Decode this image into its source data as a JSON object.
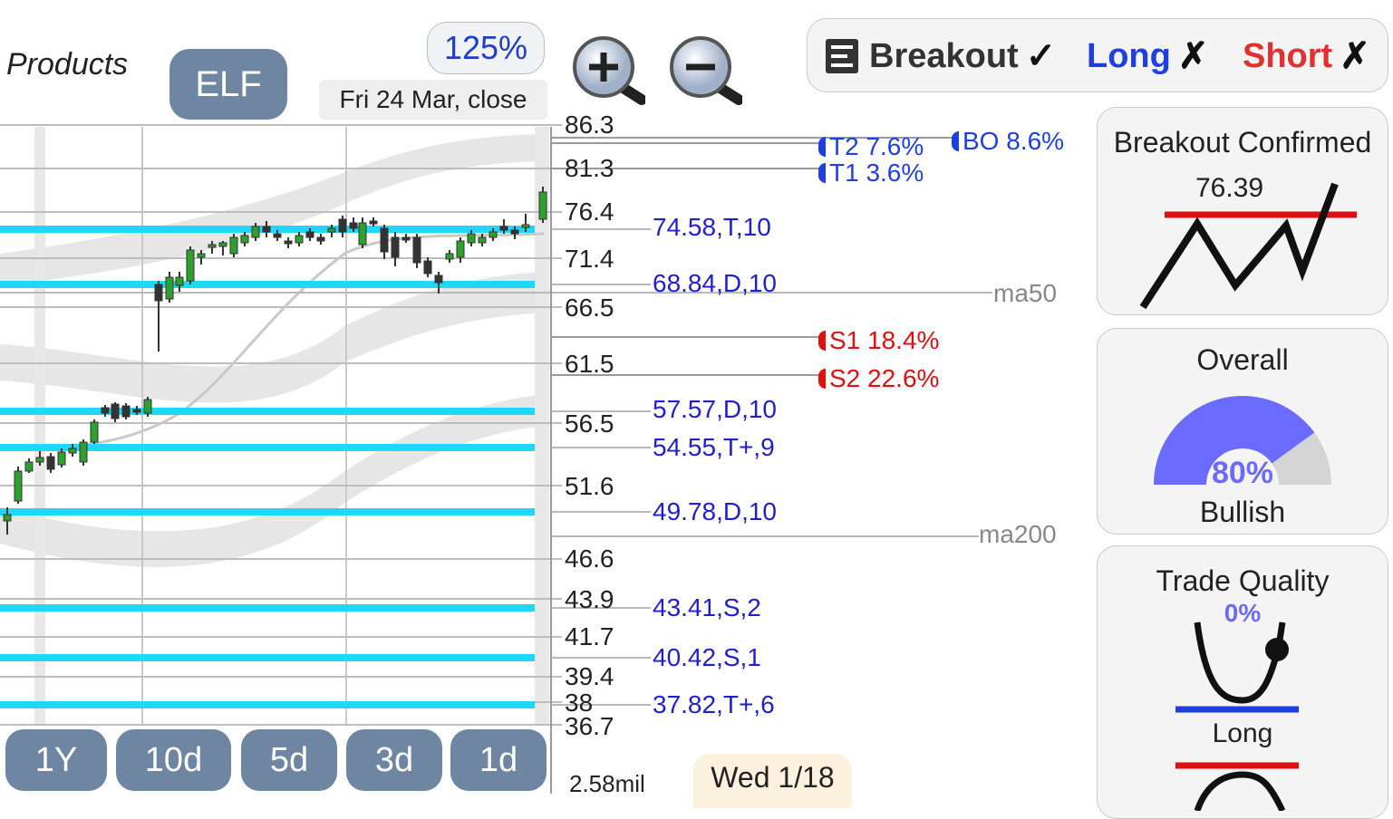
{
  "header": {
    "company_fragment": "l Products",
    "ticker": "ELF",
    "zoom_percent": "125%",
    "date_label": "Fri 24 Mar, close"
  },
  "icons": {
    "zoom_in": "zoom-in-icon",
    "zoom_out": "zoom-out-icon",
    "list": "list-icon"
  },
  "mode_bar": {
    "items": [
      {
        "label": "Breakout",
        "mark": "✓",
        "color": "#333333"
      },
      {
        "label": "Long",
        "mark": "✗",
        "color": "#1f3fe0"
      },
      {
        "label": "Short",
        "mark": "✗",
        "color": "#e03030"
      }
    ]
  },
  "price_axis": [
    "86.3",
    "81.3",
    "76.4",
    "71.4",
    "66.5",
    "61.5",
    "56.5",
    "51.6",
    "46.6",
    "43.9",
    "41.7",
    "39.4",
    "38",
    "36.7"
  ],
  "levels": [
    {
      "label": "74.58,T,10",
      "value": 74.58
    },
    {
      "label": "68.84,D,10",
      "value": 68.84
    },
    {
      "label": "57.57,D,10",
      "value": 57.57
    },
    {
      "label": "54.55,T+,9",
      "value": 54.55
    },
    {
      "label": "49.78,D,10",
      "value": 49.78
    },
    {
      "label": "43.41,S,2",
      "value": 43.41
    },
    {
      "label": "40.42,S,1",
      "value": 40.42
    },
    {
      "label": "37.82,T+,6",
      "value": 37.82
    }
  ],
  "targets": [
    {
      "label": "T2 7.6%",
      "color": "#1f3fe0"
    },
    {
      "label": "T1 3.6%",
      "color": "#1f3fe0"
    },
    {
      "label": "BO 8.6%",
      "color": "#1f3fe0"
    },
    {
      "label": "S1 18.4%",
      "color": "#e01010"
    },
    {
      "label": "S2 22.6%",
      "color": "#e01010"
    }
  ],
  "moving_averages": {
    "ma50": "ma50",
    "ma200": "ma200"
  },
  "range_buttons": [
    "1Y",
    "10d",
    "5d",
    "3d",
    "1d"
  ],
  "volume_label": "2.58mil",
  "hover_date": "Wed 1/18",
  "panels": {
    "breakout": {
      "title": "Breakout Confirmed",
      "value": "76.39"
    },
    "overall": {
      "title": "Overall",
      "percent": "80%",
      "fraction": 0.8,
      "label": "Bullish"
    },
    "trade_quality": {
      "title": "Trade Quality",
      "percent": "0%",
      "label": "Long"
    }
  },
  "colors": {
    "accent": "#6f86a3",
    "level_line": "#1ed8f5",
    "bull": "#2ea02e",
    "bear": "#333333",
    "gauge": "#6b6bff"
  }
}
